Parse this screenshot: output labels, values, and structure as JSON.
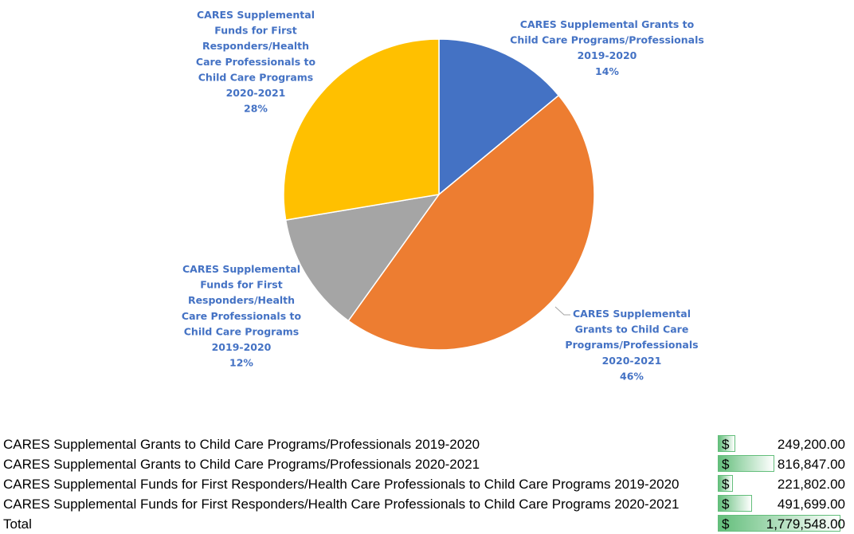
{
  "chart_data": {
    "type": "pie",
    "title": "",
    "slices": [
      {
        "name": "CARES Supplemental Grants to Child Care Programs/Professionals 2019-2020",
        "value": 249200.0,
        "percent": "14%",
        "label_lines": [
          "CARES Supplemental Grants to",
          "Child Care Programs/Professionals",
          "2019-2020",
          "14%"
        ]
      },
      {
        "name": "CARES Supplemental Grants to Child Care Programs/Professionals 2020-2021",
        "value": 816847.0,
        "percent": "46%",
        "label_lines": [
          "CARES Supplemental",
          "Grants to Child Care",
          "Programs/Professionals",
          "2020-2021",
          "46%"
        ]
      },
      {
        "name": "CARES Supplemental Funds for First Responders/Health Care Professionals to Child Care Programs 2019-2020",
        "value": 221802.0,
        "percent": "12%",
        "label_lines": [
          "CARES Supplemental",
          "Funds for First",
          "Responders/Health",
          "Care Professionals to",
          "Child Care Programs",
          "2019-2020",
          "12%"
        ]
      },
      {
        "name": "CARES Supplemental Funds for First Responders/Health Care Professionals to Child Care Programs 2020-2021",
        "value": 491699.0,
        "percent": "28%",
        "label_lines": [
          "CARES Supplemental",
          "Funds for First",
          "Responders/Health",
          "Care Professionals to",
          "Child Care Programs",
          "2020-2021",
          "28%"
        ]
      }
    ],
    "colors": [
      "#4472c4",
      "#ed7d31",
      "#a5a5a5",
      "#ffc000"
    ],
    "label_color": "#4472c4"
  },
  "table": {
    "currency": "$",
    "rows": [
      {
        "label": "CARES Supplemental Grants to Child Care Programs/Professionals 2019-2020",
        "amount": "249,200.00",
        "value": 249200.0
      },
      {
        "label": "CARES Supplemental Grants to Child Care Programs/Professionals 2020-2021",
        "amount": "816,847.00",
        "value": 816847.0
      },
      {
        "label": "CARES Supplemental Funds for First Responders/Health Care Professionals to Child Care Programs  2019-2020",
        "amount": "221,802.00",
        "value": 221802.0
      },
      {
        "label": "CARES Supplemental Funds for First Responders/Health Care Professionals to Child Care Programs 2020-2021",
        "amount": "491,699.00",
        "value": 491699.0
      }
    ],
    "total": {
      "label": "Total",
      "amount": "1,779,548.00",
      "value": 1779548.0
    }
  }
}
